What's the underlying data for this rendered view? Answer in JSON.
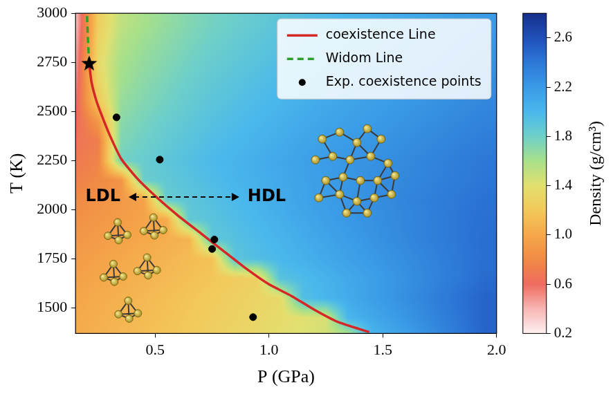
{
  "chart_data": {
    "type": "scatter",
    "x_label": "P (GPa)",
    "y_label": "T (K)",
    "xlim": [
      0.15,
      2.0
    ],
    "xticks": [
      0.5,
      {
        "value": 1,
        "label": "1.0"
      },
      1.5,
      {
        "value": 2,
        "label": "2.0"
      }
    ],
    "ylim": [
      1370,
      3000
    ],
    "yticks": [
      1500,
      1750,
      2000,
      2250,
      2500,
      2750,
      3000
    ],
    "grid": false,
    "legend": "upper right",
    "series": [
      {
        "name": "coexistence Line",
        "type": "line",
        "color": "#d62728",
        "line_style": "solid",
        "marker": "none",
        "x": [
          0.21,
          0.22,
          0.24,
          0.265,
          0.3,
          0.35,
          0.42,
          0.5,
          0.6,
          0.7,
          0.8,
          0.9,
          1.0,
          1.1,
          1.2,
          1.3,
          1.44
        ],
        "values": [
          2743,
          2650,
          2560,
          2480,
          2380,
          2260,
          2160,
          2070,
          1970,
          1880,
          1790,
          1700,
          1620,
          1560,
          1490,
          1430,
          1377
        ]
      },
      {
        "name": "Widom Line",
        "type": "line",
        "color": "#2ca02c",
        "line_style": "dashed",
        "marker": "none",
        "x": [
          0.21,
          0.205,
          0.2
        ],
        "values": [
          2743,
          2850,
          3000
        ]
      },
      {
        "name": "Exp. coexistence points",
        "type": "scatter",
        "color": "#000000",
        "marker": "circle",
        "x": [
          0.33,
          0.52,
          0.76,
          0.75,
          0.93
        ],
        "values": [
          2470,
          2255,
          1848,
          1800,
          1453
        ]
      },
      {
        "type": "scatter",
        "color": "#000000",
        "marker": "star",
        "x": [
          0.21
        ],
        "values": [
          2743
        ]
      }
    ],
    "annotations": [
      {
        "text": "LDL",
        "x": 0.27,
        "y": 2065
      },
      {
        "text": "HDL",
        "x": 0.99,
        "y": 2065
      }
    ],
    "heatmap": {
      "x": [
        0.15,
        0.25,
        0.35,
        0.45,
        0.55,
        0.65,
        0.75,
        0.85,
        0.95,
        1.05,
        1.15,
        1.25,
        1.35,
        1.45,
        1.55,
        1.65,
        1.75,
        1.85,
        1.95
      ],
      "y": [
        1350,
        1450,
        1550,
        1650,
        1750,
        1850,
        1950,
        2050,
        2150,
        2250,
        2350,
        2450,
        2550,
        2650,
        2750,
        2850,
        2950
      ],
      "values": [
        [
          1.02,
          1.06,
          1.1,
          1.14,
          1.18,
          1.22,
          1.26,
          1.3,
          1.34,
          1.38,
          1.42,
          1.46,
          1.5,
          2.0,
          2.1,
          2.2,
          2.3,
          2.4,
          2.5
        ],
        [
          1.0,
          1.04,
          1.08,
          1.12,
          1.16,
          1.2,
          1.24,
          1.28,
          1.32,
          1.36,
          1.4,
          1.44,
          2.02,
          2.1,
          2.18,
          2.26,
          2.34,
          2.42,
          2.5
        ],
        [
          0.98,
          1.02,
          1.06,
          1.1,
          1.14,
          1.18,
          1.22,
          1.26,
          1.3,
          1.34,
          1.95,
          2.02,
          2.09,
          2.16,
          2.23,
          2.3,
          2.37,
          2.44,
          2.5
        ],
        [
          0.95,
          0.99,
          1.03,
          1.07,
          1.11,
          1.15,
          1.19,
          1.23,
          1.27,
          1.92,
          1.98,
          2.04,
          2.1,
          2.16,
          2.22,
          2.28,
          2.34,
          2.4,
          2.46
        ],
        [
          0.92,
          0.96,
          1.0,
          1.04,
          1.08,
          1.12,
          1.16,
          1.9,
          1.95,
          2.0,
          2.05,
          2.1,
          2.15,
          2.2,
          2.25,
          2.3,
          2.35,
          2.4,
          2.45
        ],
        [
          0.88,
          0.92,
          0.96,
          1.0,
          1.04,
          1.08,
          1.88,
          1.93,
          1.98,
          2.03,
          2.08,
          2.13,
          2.18,
          2.23,
          2.28,
          2.33,
          2.37,
          2.41,
          2.45
        ],
        [
          0.85,
          0.89,
          0.93,
          0.97,
          1.01,
          1.86,
          1.91,
          1.96,
          2.01,
          2.06,
          2.11,
          2.16,
          2.21,
          2.25,
          2.29,
          2.33,
          2.37,
          2.41,
          2.44
        ],
        [
          0.8,
          0.85,
          0.9,
          0.95,
          1.84,
          1.89,
          1.94,
          1.99,
          2.04,
          2.09,
          2.14,
          2.18,
          2.22,
          2.26,
          2.3,
          2.34,
          2.37,
          2.4,
          2.43
        ],
        [
          0.75,
          0.8,
          0.86,
          1.82,
          1.87,
          1.92,
          1.97,
          2.02,
          2.06,
          2.1,
          2.14,
          2.18,
          2.22,
          2.26,
          2.29,
          2.32,
          2.35,
          2.38,
          2.41
        ],
        [
          0.7,
          0.76,
          1.78,
          1.84,
          1.89,
          1.94,
          1.99,
          2.03,
          2.07,
          2.11,
          2.15,
          2.19,
          2.22,
          2.25,
          2.28,
          2.31,
          2.34,
          2.37,
          2.4
        ],
        [
          0.66,
          0.72,
          1.74,
          1.8,
          1.86,
          1.91,
          1.96,
          2.0,
          2.04,
          2.08,
          2.12,
          2.16,
          2.19,
          2.22,
          2.25,
          2.28,
          2.31,
          2.34,
          2.37
        ],
        [
          0.6,
          0.9,
          1.7,
          1.77,
          1.83,
          1.88,
          1.93,
          1.97,
          2.01,
          2.05,
          2.09,
          2.13,
          2.16,
          2.19,
          2.22,
          2.25,
          2.28,
          2.31,
          2.34
        ],
        [
          0.55,
          1.2,
          1.66,
          1.73,
          1.79,
          1.85,
          1.9,
          1.94,
          1.98,
          2.02,
          2.06,
          2.1,
          2.13,
          2.16,
          2.19,
          2.22,
          2.25,
          2.28,
          2.31
        ],
        [
          0.5,
          1.3,
          1.62,
          1.7,
          1.76,
          1.82,
          1.87,
          1.91,
          1.95,
          1.99,
          2.03,
          2.07,
          2.1,
          2.13,
          2.16,
          2.19,
          2.22,
          2.25,
          2.28
        ],
        [
          0.45,
          1.35,
          1.6,
          1.67,
          1.73,
          1.79,
          1.84,
          1.88,
          1.92,
          1.96,
          2.0,
          2.04,
          2.07,
          2.1,
          2.13,
          2.16,
          2.19,
          2.22,
          2.25
        ],
        [
          0.4,
          1.3,
          1.56,
          1.64,
          1.7,
          1.76,
          1.81,
          1.85,
          1.89,
          1.93,
          1.97,
          2.01,
          2.04,
          2.07,
          2.1,
          2.13,
          2.16,
          2.19,
          2.22
        ],
        [
          0.35,
          1.25,
          1.52,
          1.6,
          1.67,
          1.73,
          1.78,
          1.82,
          1.86,
          1.9,
          1.94,
          1.98,
          2.01,
          2.04,
          2.07,
          2.1,
          2.13,
          2.16,
          2.19
        ]
      ]
    },
    "colorbar": {
      "label": "Density (g/cm³)",
      "range": [
        0.2,
        2.8
      ],
      "ticks": [
        0.2,
        0.6,
        {
          "value": 1,
          "label": "1.0"
        },
        1.4,
        1.8,
        2.2,
        2.6
      ]
    }
  }
}
